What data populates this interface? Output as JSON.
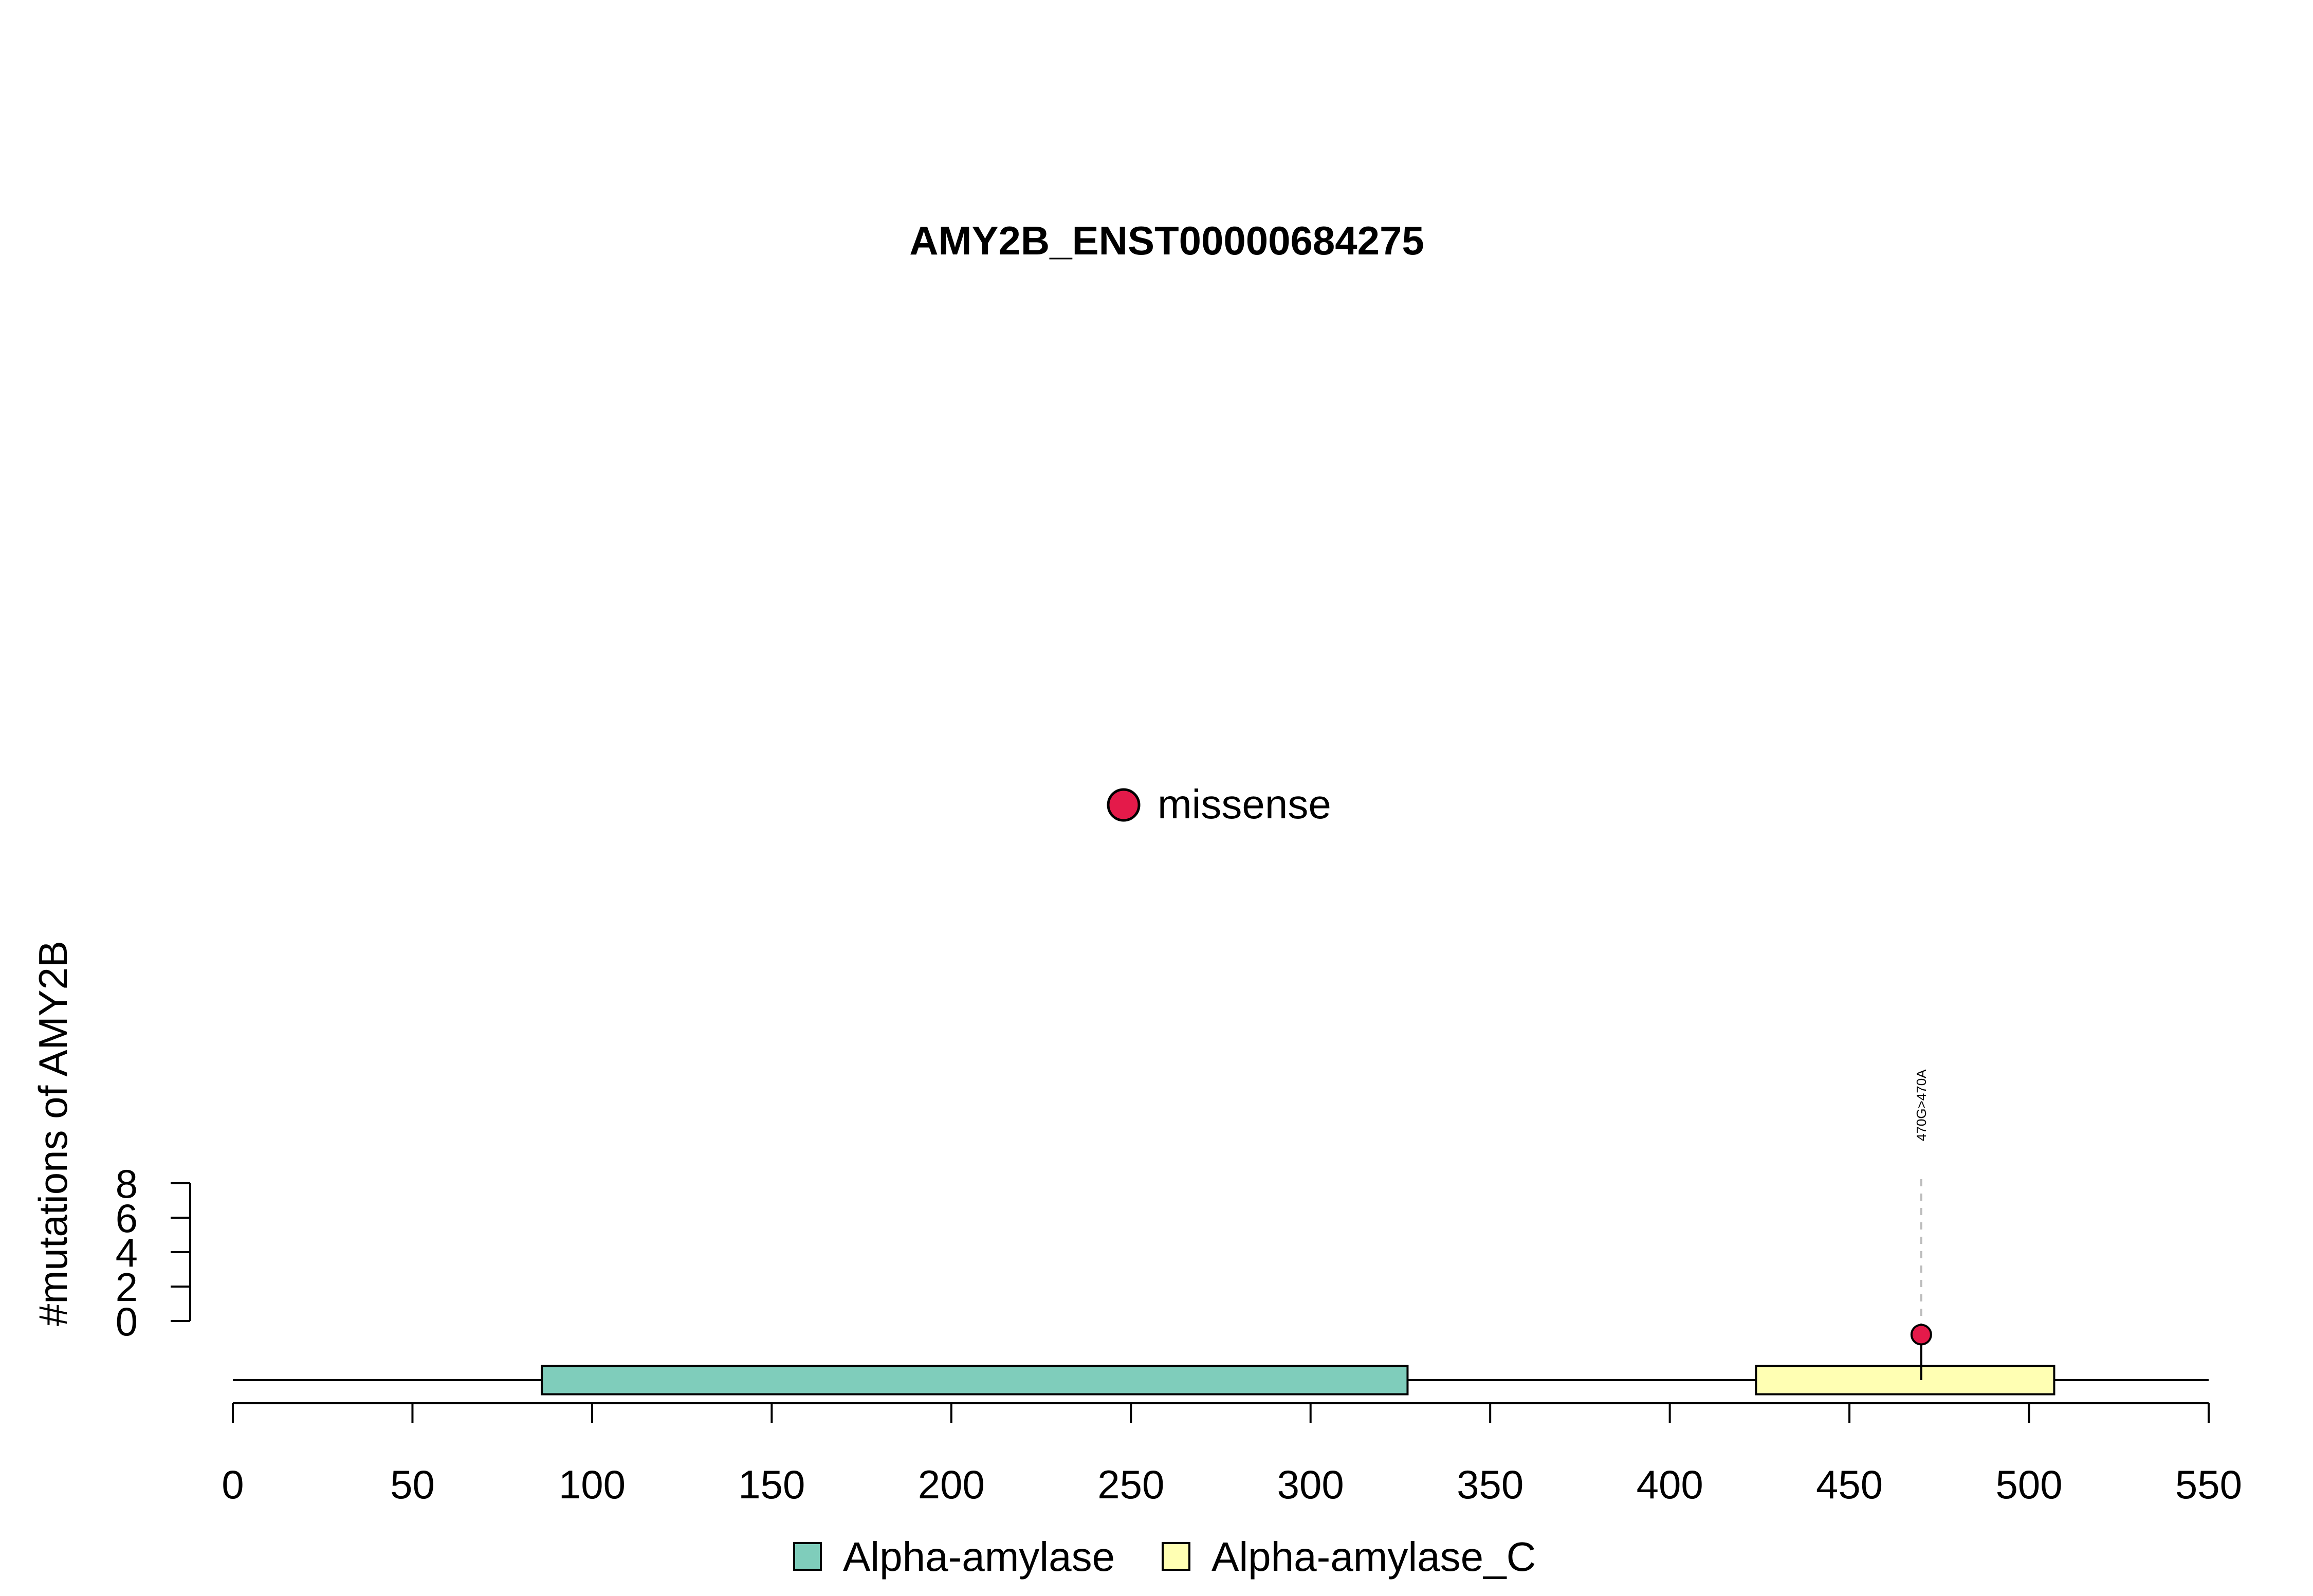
{
  "chart_data": {
    "type": "lollipop",
    "title": "AMY2B_ENST00000684275",
    "ylabel": "#mutations of AMY2B",
    "xlim": [
      0,
      550
    ],
    "x_ticks": [
      "0",
      "50",
      "100",
      "150",
      "200",
      "250",
      "300",
      "350",
      "400",
      "450",
      "500",
      "550"
    ],
    "ylim": [
      0,
      8
    ],
    "y_ticks": [
      "0",
      "2",
      "4",
      "6",
      "8"
    ],
    "protein_length": 550,
    "domains": [
      {
        "name": "Alpha-amylase",
        "start": 86,
        "end": 327,
        "color": "#7fcdbb"
      },
      {
        "name": "Alpha-amylase_C",
        "start": 424,
        "end": 507,
        "color": "#ffffb3"
      }
    ],
    "mutations": [
      {
        "position": 470,
        "count": 1,
        "label": "470G>470A",
        "type": "missense",
        "color": "#e41a4a"
      }
    ],
    "mutation_legend": [
      {
        "type": "missense",
        "color": "#e41a4a"
      }
    ],
    "domain_legend": [
      "Alpha-amylase",
      "Alpha-amylase_C"
    ],
    "grid": false,
    "legend_placement": "bottom"
  }
}
